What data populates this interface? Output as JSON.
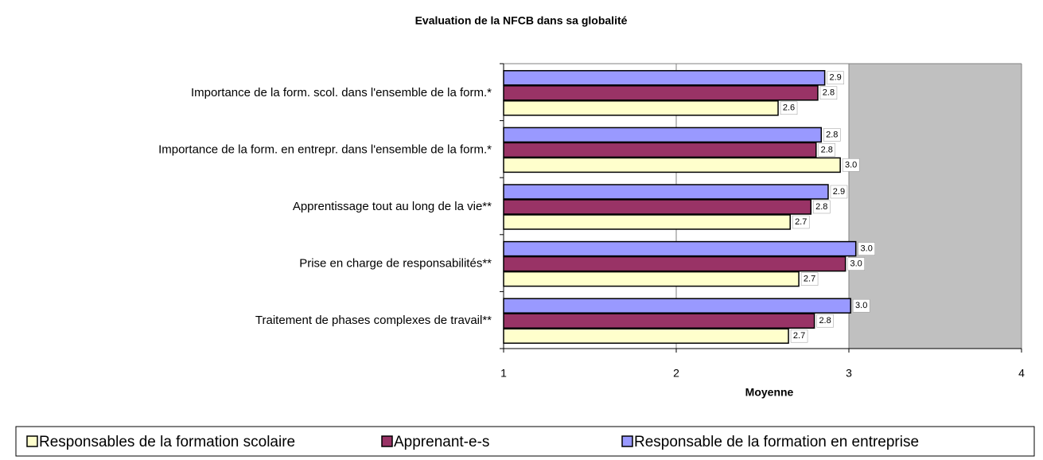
{
  "chart_data": {
    "type": "barh",
    "title": "Evaluation de la NFCB dans sa globalité",
    "categories": [
      "Importance de la form. scol. dans l'ensemble de la form.*",
      "Importance de la form.  en entrepr. dans l'ensemble de la form.*",
      "Apprentissage tout au long de la vie**",
      "Prise en charge de responsabilités**",
      "Traitement de phases complexes de travail**"
    ],
    "series": [
      {
        "name": "Responsables de la formation scolaire",
        "color": "#ffffcc",
        "values": [
          2.59,
          2.95,
          2.66,
          2.71,
          2.65
        ],
        "value_labels": [
          "2.6",
          "3.0",
          "2.7",
          "2.7",
          "2.7"
        ]
      },
      {
        "name": "Apprenant-e-s",
        "color": "#993366",
        "values": [
          2.82,
          2.81,
          2.78,
          2.98,
          2.8
        ],
        "value_labels": [
          "2.8",
          "2.8",
          "2.8",
          "3.0",
          "2.8"
        ]
      },
      {
        "name": "Responsable de la formation en entreprise",
        "color": "#9999ff",
        "values": [
          2.86,
          2.84,
          2.88,
          3.04,
          3.01
        ],
        "value_labels": [
          "2.9",
          "2.8",
          "2.9",
          "3.0",
          "3.0"
        ]
      }
    ],
    "xlabel": "Moyenne",
    "xlim": [
      1,
      4
    ],
    "xticks": [
      1,
      2,
      3,
      4
    ],
    "grid": true,
    "legend": "bottom"
  }
}
